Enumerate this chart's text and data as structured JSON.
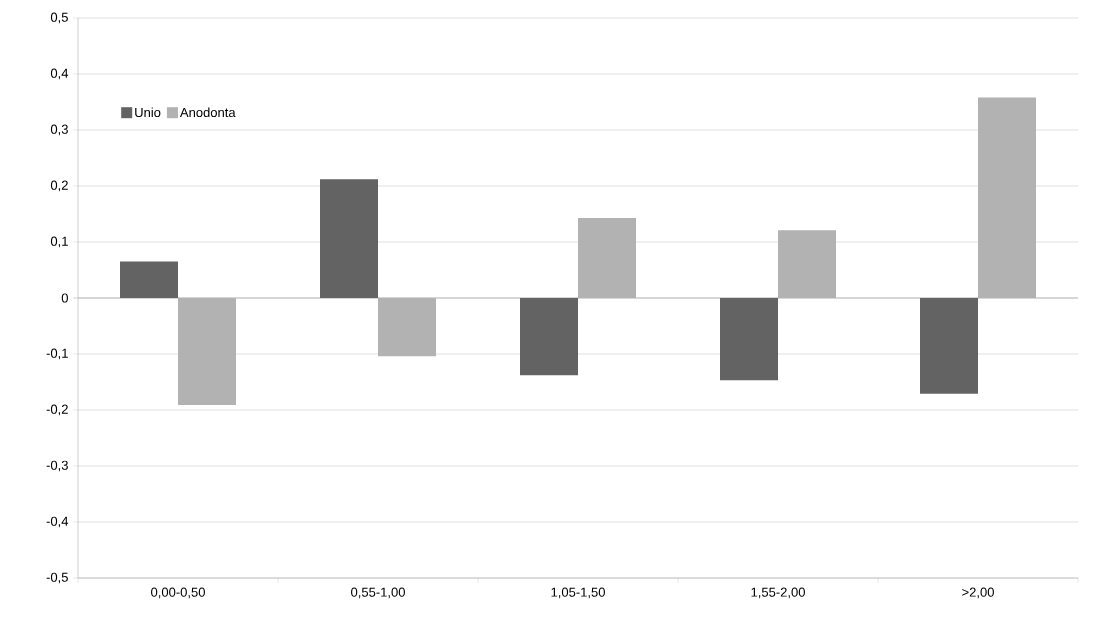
{
  "chart_data": {
    "type": "bar",
    "categories": [
      "0,00-0,50",
      "0,55-1,00",
      "1,05-1,50",
      "1,55-2,00",
      ">2,00"
    ],
    "series": [
      {
        "name": "Unio",
        "color": "#636363",
        "values": [
          0.065,
          0.212,
          -0.138,
          -0.147,
          -0.171
        ]
      },
      {
        "name": "Anodonta",
        "color": "#b2b2b2",
        "values": [
          -0.191,
          -0.104,
          0.143,
          0.121,
          0.358
        ]
      }
    ],
    "ylim": [
      -0.5,
      0.5
    ],
    "yticks": [
      {
        "value": -0.5,
        "label": "-0,5"
      },
      {
        "value": -0.4,
        "label": "-0,4"
      },
      {
        "value": -0.3,
        "label": "-0,3"
      },
      {
        "value": -0.2,
        "label": "-0,2"
      },
      {
        "value": -0.1,
        "label": "-0,1"
      },
      {
        "value": 0,
        "label": "0"
      },
      {
        "value": 0.1,
        "label": "0,1"
      },
      {
        "value": 0.2,
        "label": "0,2"
      },
      {
        "value": 0.3,
        "label": "0,3"
      },
      {
        "value": 0.4,
        "label": "0,4"
      },
      {
        "value": 0.5,
        "label": "0,5"
      }
    ],
    "grid": "y",
    "legend": "top left"
  }
}
